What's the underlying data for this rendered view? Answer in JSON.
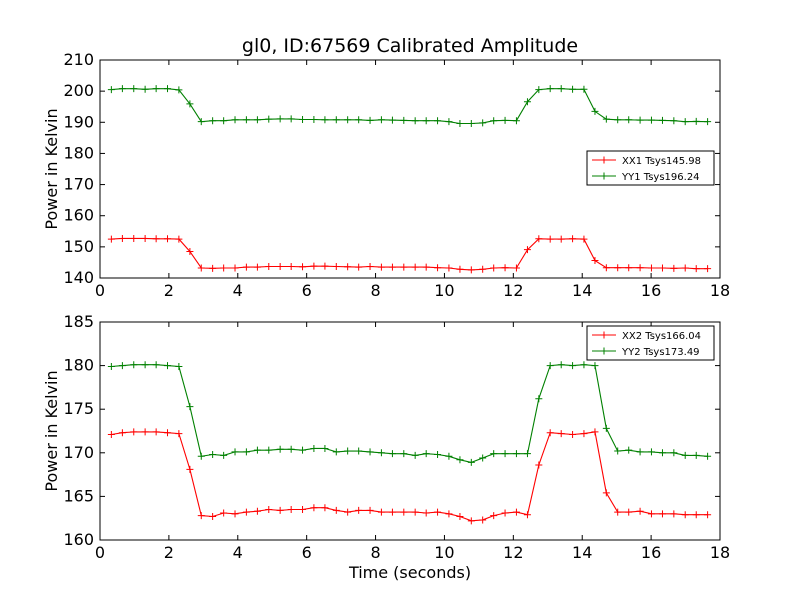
{
  "figure": {
    "title": "gl0, ID:67569 Calibrated Amplitude",
    "xlabel": "Time (seconds)"
  },
  "colors": {
    "red": "#ff0000",
    "green": "#008000"
  },
  "chart_data": [
    {
      "type": "line",
      "title": "gl0, ID:67569 Calibrated Amplitude",
      "xlabel": "",
      "ylabel": "Power in Kelvin",
      "xlim": [
        0,
        18
      ],
      "ylim": [
        140,
        210
      ],
      "xticks": [
        0,
        2,
        4,
        6,
        8,
        10,
        12,
        14,
        16,
        18
      ],
      "yticks": [
        140,
        150,
        160,
        170,
        180,
        190,
        200,
        210
      ],
      "grid": false,
      "legend_position": "center-right",
      "x": [
        0.33,
        0.65,
        0.98,
        1.31,
        1.63,
        1.96,
        2.29,
        2.61,
        2.94,
        3.27,
        3.59,
        3.92,
        4.25,
        4.57,
        4.9,
        5.23,
        5.55,
        5.88,
        6.21,
        6.53,
        6.86,
        7.19,
        7.51,
        7.84,
        8.17,
        8.49,
        8.82,
        9.15,
        9.47,
        9.8,
        10.13,
        10.45,
        10.78,
        11.11,
        11.43,
        11.76,
        12.09,
        12.41,
        12.74,
        13.07,
        13.39,
        13.72,
        14.05,
        14.37,
        14.7,
        15.03,
        15.35,
        15.68,
        16.01,
        16.33,
        16.66,
        16.99,
        17.31,
        17.64
      ],
      "series": [
        {
          "name": "XX1 Tsys145.98",
          "color": "#ff0000",
          "values": [
            152.5,
            152.7,
            152.7,
            152.7,
            152.6,
            152.6,
            152.5,
            148.5,
            143.2,
            143.1,
            143.2,
            143.2,
            143.5,
            143.5,
            143.7,
            143.7,
            143.7,
            143.6,
            143.8,
            143.8,
            143.7,
            143.6,
            143.5,
            143.7,
            143.5,
            143.5,
            143.5,
            143.5,
            143.5,
            143.3,
            143.2,
            142.8,
            142.6,
            142.8,
            143.2,
            143.3,
            143.2,
            149.1,
            152.6,
            152.5,
            152.5,
            152.6,
            152.5,
            145.6,
            143.3,
            143.3,
            143.3,
            143.3,
            143.2,
            143.2,
            143.1,
            143.2,
            143.0,
            143.0
          ]
        },
        {
          "name": "YY1 Tsys196.24",
          "color": "#008000",
          "values": [
            200.5,
            200.8,
            200.8,
            200.6,
            200.8,
            200.8,
            200.4,
            195.9,
            190.2,
            190.5,
            190.5,
            190.8,
            190.8,
            190.8,
            191.0,
            191.1,
            191.1,
            190.9,
            190.9,
            190.8,
            190.8,
            190.8,
            190.8,
            190.6,
            190.8,
            190.7,
            190.6,
            190.5,
            190.5,
            190.5,
            190.2,
            189.6,
            189.6,
            189.8,
            190.5,
            190.6,
            190.5,
            196.6,
            200.5,
            200.8,
            200.8,
            200.6,
            200.6,
            193.5,
            191.0,
            190.8,
            190.8,
            190.7,
            190.7,
            190.6,
            190.5,
            190.2,
            190.3,
            190.2
          ]
        }
      ]
    },
    {
      "type": "line",
      "title": "",
      "xlabel": "Time (seconds)",
      "ylabel": "Power in Kelvin",
      "xlim": [
        0,
        18
      ],
      "ylim": [
        160,
        185
      ],
      "xticks": [
        0,
        2,
        4,
        6,
        8,
        10,
        12,
        14,
        16,
        18
      ],
      "yticks": [
        160,
        165,
        170,
        175,
        180,
        185
      ],
      "grid": false,
      "legend_position": "top-right",
      "x": [
        0.33,
        0.65,
        0.98,
        1.31,
        1.63,
        1.96,
        2.29,
        2.61,
        2.94,
        3.27,
        3.59,
        3.92,
        4.25,
        4.57,
        4.9,
        5.23,
        5.55,
        5.88,
        6.21,
        6.53,
        6.86,
        7.19,
        7.51,
        7.84,
        8.17,
        8.49,
        8.82,
        9.15,
        9.47,
        9.8,
        10.13,
        10.45,
        10.78,
        11.11,
        11.43,
        11.76,
        12.09,
        12.41,
        12.74,
        13.07,
        13.39,
        13.72,
        14.05,
        14.37,
        14.7,
        15.03,
        15.35,
        15.68,
        16.01,
        16.33,
        16.66,
        16.99,
        17.31,
        17.64
      ],
      "series": [
        {
          "name": "XX2 Tsys166.04",
          "color": "#ff0000",
          "values": [
            172.1,
            172.3,
            172.4,
            172.4,
            172.4,
            172.3,
            172.2,
            168.1,
            162.8,
            162.7,
            163.1,
            163.0,
            163.2,
            163.3,
            163.5,
            163.4,
            163.5,
            163.5,
            163.7,
            163.7,
            163.4,
            163.2,
            163.4,
            163.4,
            163.2,
            163.2,
            163.2,
            163.2,
            163.1,
            163.2,
            163.0,
            162.7,
            162.2,
            162.3,
            162.8,
            163.1,
            163.2,
            162.9,
            168.6,
            172.3,
            172.2,
            172.1,
            172.2,
            172.4,
            165.4,
            163.2,
            163.2,
            163.3,
            163.0,
            163.0,
            163.0,
            162.9,
            162.9,
            162.9
          ]
        },
        {
          "name": "YY2 Tsys173.49",
          "color": "#008000",
          "values": [
            179.9,
            180.0,
            180.1,
            180.1,
            180.1,
            180.0,
            179.9,
            175.3,
            169.6,
            169.8,
            169.7,
            170.1,
            170.1,
            170.3,
            170.3,
            170.4,
            170.4,
            170.3,
            170.5,
            170.5,
            170.1,
            170.2,
            170.2,
            170.1,
            170.0,
            169.9,
            169.9,
            169.7,
            169.9,
            169.8,
            169.6,
            169.2,
            168.9,
            169.4,
            169.9,
            169.9,
            169.9,
            169.9,
            176.2,
            180.0,
            180.1,
            180.0,
            180.1,
            180.0,
            172.8,
            170.2,
            170.3,
            170.1,
            170.1,
            170.0,
            170.0,
            169.7,
            169.7,
            169.6
          ]
        }
      ]
    }
  ]
}
